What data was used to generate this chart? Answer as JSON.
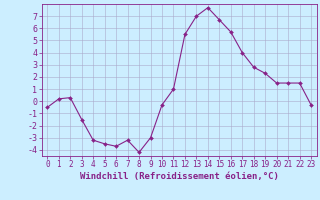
{
  "x": [
    0,
    1,
    2,
    3,
    4,
    5,
    6,
    7,
    8,
    9,
    10,
    11,
    12,
    13,
    14,
    15,
    16,
    17,
    18,
    19,
    20,
    21,
    22,
    23
  ],
  "y": [
    -0.5,
    0.2,
    0.3,
    -1.5,
    -3.2,
    -3.5,
    -3.7,
    -3.2,
    -4.2,
    -3.0,
    -0.3,
    1.0,
    5.5,
    7.0,
    7.7,
    6.7,
    5.7,
    4.0,
    2.8,
    2.3,
    1.5,
    1.5,
    1.5,
    -0.3
  ],
  "line_color": "#882288",
  "marker": "D",
  "marker_size": 2,
  "bg_color": "#cceeff",
  "grid_color": "#aaaacc",
  "xlabel": "Windchill (Refroidissement éolien,°C)",
  "xlim": [
    -0.5,
    23.5
  ],
  "ylim": [
    -4.5,
    8.0
  ],
  "yticks": [
    -4,
    -3,
    -2,
    -1,
    0,
    1,
    2,
    3,
    4,
    5,
    6,
    7
  ],
  "xticks": [
    0,
    1,
    2,
    3,
    4,
    5,
    6,
    7,
    8,
    9,
    10,
    11,
    12,
    13,
    14,
    15,
    16,
    17,
    18,
    19,
    20,
    21,
    22,
    23
  ],
  "tick_color": "#882288",
  "label_color": "#882288",
  "label_fontsize": 6.5,
  "tick_fontsize": 5.5,
  "ytick_fontsize": 6
}
